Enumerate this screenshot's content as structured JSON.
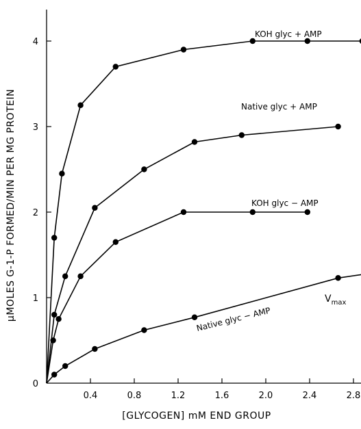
{
  "chart_data": {
    "type": "line",
    "xlabel": "[GLYCOGEN] mM END GROUP",
    "ylabel": "μMOLES G-1-P FORMED/MIN PER MG PROTEIN",
    "xlim": [
      0,
      2.9
    ],
    "ylim": [
      0,
      4.2
    ],
    "x_ticks": [
      0.4,
      0.8,
      1.2,
      1.6,
      2.0,
      2.4,
      2.8
    ],
    "x_tick_labels": [
      "0.4",
      "0.8",
      "1.2",
      "1.6",
      "2.0",
      "2.4",
      "2.8"
    ],
    "y_ticks": [
      0,
      1,
      2,
      3,
      4
    ],
    "y_tick_labels": [
      "0",
      "1",
      "2",
      "3",
      "4"
    ],
    "grid": false,
    "series": [
      {
        "name": "KOH glyc + AMP",
        "x": [
          0,
          0.07,
          0.14,
          0.31,
          0.63,
          1.25,
          1.88,
          2.38,
          2.88
        ],
        "y": [
          0,
          1.7,
          2.45,
          3.25,
          3.7,
          3.9,
          4.0,
          4.0,
          4.0
        ]
      },
      {
        "name": "Native glyc + AMP",
        "x": [
          0,
          0.07,
          0.17,
          0.44,
          0.89,
          1.35,
          1.78,
          2.66
        ],
        "y": [
          0,
          0.8,
          1.25,
          2.05,
          2.5,
          2.82,
          2.9,
          3.0
        ]
      },
      {
        "name": "KOH glyc − AMP",
        "x": [
          0,
          0.06,
          0.11,
          0.31,
          0.63,
          1.25,
          1.88,
          2.38
        ],
        "y": [
          0,
          0.5,
          0.75,
          1.25,
          1.65,
          2.0,
          2.0,
          2.0
        ]
      },
      {
        "name": "Native glyc − AMP",
        "x": [
          0,
          0.07,
          0.17,
          0.44,
          0.89,
          1.35,
          2.66,
          2.93
        ],
        "y": [
          0,
          0.1,
          0.2,
          0.4,
          0.62,
          0.77,
          1.23,
          1.28
        ]
      }
    ],
    "annotations": [
      {
        "text": "V",
        "subscript": "max",
        "near_series": "Native glyc − AMP",
        "x": 2.6,
        "y": 1.45
      }
    ]
  }
}
